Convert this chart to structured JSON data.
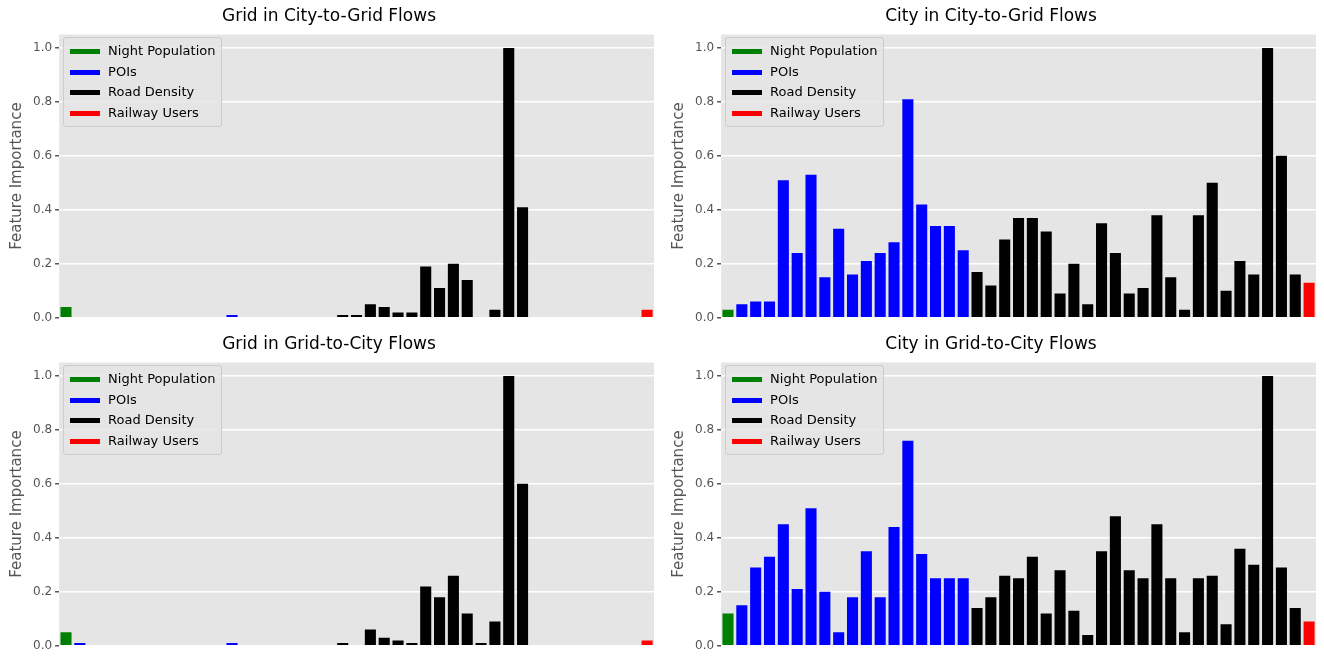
{
  "chart_data": [
    {
      "type": "bar",
      "title": "Grid in City-to-Grid Flows",
      "ylabel": "Feature Importance",
      "categories": [
        null,
        null,
        null,
        null,
        null,
        null,
        null,
        null,
        null,
        null,
        null,
        null,
        null,
        null,
        null,
        null,
        null,
        null,
        null,
        null,
        null,
        null,
        null,
        null,
        null,
        null,
        null,
        null,
        null,
        null,
        null,
        null,
        null,
        null,
        null,
        null,
        null,
        null,
        null,
        null,
        null,
        null,
        null
      ],
      "series": [
        {
          "name": "Night Population",
          "color": "#008000",
          "values": [
            0.04,
            null,
            null,
            null,
            null,
            null,
            null,
            null,
            null,
            null,
            null,
            null,
            null,
            null,
            null,
            null,
            null,
            null,
            null,
            null,
            null,
            null,
            null,
            null,
            null,
            null,
            null,
            null,
            null,
            null,
            null,
            null,
            null,
            null,
            null,
            null,
            null,
            null,
            null,
            null,
            null,
            null,
            null
          ]
        },
        {
          "name": "POIs",
          "color": "#0000ff",
          "values": [
            null,
            0,
            0,
            0,
            0,
            0,
            0,
            0,
            0,
            0,
            0,
            0,
            0.01,
            0,
            0,
            0,
            0,
            0,
            null,
            null,
            null,
            null,
            null,
            null,
            null,
            null,
            null,
            null,
            null,
            null,
            null,
            null,
            null,
            null,
            null,
            null,
            null,
            null,
            null,
            null,
            null,
            null,
            null
          ]
        },
        {
          "name": "Road Density",
          "color": "#000000",
          "values": [
            null,
            null,
            null,
            null,
            null,
            null,
            null,
            null,
            null,
            null,
            null,
            null,
            null,
            null,
            null,
            null,
            null,
            null,
            0,
            0,
            0.01,
            0.01,
            0.05,
            0.04,
            0.02,
            0.02,
            0.19,
            0.11,
            0.2,
            0.14,
            0,
            0.03,
            1.0,
            0.41,
            0,
            0,
            0,
            0,
            0,
            0,
            0,
            0,
            null
          ]
        },
        {
          "name": "Railway Users",
          "color": "#ff0000",
          "values": [
            null,
            null,
            null,
            null,
            null,
            null,
            null,
            null,
            null,
            null,
            null,
            null,
            null,
            null,
            null,
            null,
            null,
            null,
            null,
            null,
            null,
            null,
            null,
            null,
            null,
            null,
            null,
            null,
            null,
            null,
            null,
            null,
            null,
            null,
            null,
            null,
            null,
            null,
            null,
            null,
            null,
            null,
            0.03
          ]
        }
      ],
      "ylim": [
        0,
        1.05
      ],
      "yticks": [
        {
          "value": 0,
          "label": "0.0"
        },
        {
          "value": 0.2,
          "label": "0.2"
        },
        {
          "value": 0.4,
          "label": "0.4"
        },
        {
          "value": 0.6,
          "label": "0.6"
        },
        {
          "value": 0.8,
          "label": "0.8"
        },
        {
          "value": 1,
          "label": "1.0"
        }
      ],
      "grid": "y",
      "legend": "top left"
    },
    {
      "type": "bar",
      "title": "City in City-to-Grid Flows",
      "ylabel": "Feature Importance",
      "categories": [
        null,
        null,
        null,
        null,
        null,
        null,
        null,
        null,
        null,
        null,
        null,
        null,
        null,
        null,
        null,
        null,
        null,
        null,
        null,
        null,
        null,
        null,
        null,
        null,
        null,
        null,
        null,
        null,
        null,
        null,
        null,
        null,
        null,
        null,
        null,
        null,
        null,
        null,
        null,
        null,
        null,
        null,
        null
      ],
      "series": [
        {
          "name": "Night Population",
          "color": "#008000",
          "values": [
            0.03,
            null,
            null,
            null,
            null,
            null,
            null,
            null,
            null,
            null,
            null,
            null,
            null,
            null,
            null,
            null,
            null,
            null,
            null,
            null,
            null,
            null,
            null,
            null,
            null,
            null,
            null,
            null,
            null,
            null,
            null,
            null,
            null,
            null,
            null,
            null,
            null,
            null,
            null,
            null,
            null,
            null,
            null
          ]
        },
        {
          "name": "POIs",
          "color": "#0000ff",
          "values": [
            null,
            0.05,
            0.06,
            0.06,
            0.51,
            0.24,
            0.53,
            0.15,
            0.33,
            0.16,
            0.21,
            0.24,
            0.28,
            0.81,
            0.42,
            0.34,
            0.34,
            0.25,
            null,
            null,
            null,
            null,
            null,
            null,
            null,
            null,
            null,
            null,
            null,
            null,
            null,
            null,
            null,
            null,
            null,
            null,
            null,
            null,
            null,
            null,
            null,
            null,
            null
          ]
        },
        {
          "name": "Road Density",
          "color": "#000000",
          "values": [
            null,
            null,
            null,
            null,
            null,
            null,
            null,
            null,
            null,
            null,
            null,
            null,
            null,
            null,
            null,
            null,
            null,
            null,
            0.17,
            0.12,
            0.29,
            0.37,
            0.37,
            0.32,
            0.09,
            0.2,
            0.05,
            0.35,
            0.24,
            0.09,
            0.11,
            0.38,
            0.15,
            0.03,
            0.38,
            0.5,
            0.1,
            0.21,
            0.16,
            1.0,
            0.6,
            0.16,
            null
          ]
        },
        {
          "name": "Railway Users",
          "color": "#ff0000",
          "values": [
            null,
            null,
            null,
            null,
            null,
            null,
            null,
            null,
            null,
            null,
            null,
            null,
            null,
            null,
            null,
            null,
            null,
            null,
            null,
            null,
            null,
            null,
            null,
            null,
            null,
            null,
            null,
            null,
            null,
            null,
            null,
            null,
            null,
            null,
            null,
            null,
            null,
            null,
            null,
            null,
            null,
            null,
            0.13
          ]
        }
      ],
      "ylim": [
        0,
        1.05
      ],
      "yticks": [
        {
          "value": 0,
          "label": "0.0"
        },
        {
          "value": 0.2,
          "label": "0.2"
        },
        {
          "value": 0.4,
          "label": "0.4"
        },
        {
          "value": 0.6,
          "label": "0.6"
        },
        {
          "value": 0.8,
          "label": "0.8"
        },
        {
          "value": 1,
          "label": "1.0"
        }
      ],
      "grid": "y",
      "legend": "top left"
    },
    {
      "type": "bar",
      "title": "Grid in Grid-to-City Flows",
      "ylabel": "Feature Importance",
      "categories": [
        null,
        null,
        null,
        null,
        null,
        null,
        null,
        null,
        null,
        null,
        null,
        null,
        null,
        null,
        null,
        null,
        null,
        null,
        null,
        null,
        null,
        null,
        null,
        null,
        null,
        null,
        null,
        null,
        null,
        null,
        null,
        null,
        null,
        null,
        null,
        null,
        null,
        null,
        null,
        null,
        null,
        null,
        null
      ],
      "series": [
        {
          "name": "Night Population",
          "color": "#008000",
          "values": [
            0.05,
            null,
            null,
            null,
            null,
            null,
            null,
            null,
            null,
            null,
            null,
            null,
            null,
            null,
            null,
            null,
            null,
            null,
            null,
            null,
            null,
            null,
            null,
            null,
            null,
            null,
            null,
            null,
            null,
            null,
            null,
            null,
            null,
            null,
            null,
            null,
            null,
            null,
            null,
            null,
            null,
            null,
            null
          ]
        },
        {
          "name": "POIs",
          "color": "#0000ff",
          "values": [
            null,
            0.01,
            0,
            0,
            0,
            0,
            0,
            0,
            0,
            0,
            0,
            0,
            0.01,
            0,
            0,
            0,
            0,
            0,
            null,
            null,
            null,
            null,
            null,
            null,
            null,
            null,
            null,
            null,
            null,
            null,
            null,
            null,
            null,
            null,
            null,
            null,
            null,
            null,
            null,
            null,
            null,
            null,
            null
          ]
        },
        {
          "name": "Road Density",
          "color": "#000000",
          "values": [
            null,
            null,
            null,
            null,
            null,
            null,
            null,
            null,
            null,
            null,
            null,
            null,
            null,
            null,
            null,
            null,
            null,
            null,
            0,
            0,
            0.01,
            0,
            0.06,
            0.03,
            0.02,
            0.01,
            0.22,
            0.18,
            0.26,
            0.12,
            0.01,
            0.09,
            1.0,
            0.6,
            0,
            0,
            0,
            0,
            0,
            0,
            0,
            0,
            null
          ]
        },
        {
          "name": "Railway Users",
          "color": "#ff0000",
          "values": [
            null,
            null,
            null,
            null,
            null,
            null,
            null,
            null,
            null,
            null,
            null,
            null,
            null,
            null,
            null,
            null,
            null,
            null,
            null,
            null,
            null,
            null,
            null,
            null,
            null,
            null,
            null,
            null,
            null,
            null,
            null,
            null,
            null,
            null,
            null,
            null,
            null,
            null,
            null,
            null,
            null,
            null,
            0.02
          ]
        }
      ],
      "ylim": [
        0,
        1.05
      ],
      "yticks": [
        {
          "value": 0,
          "label": "0.0"
        },
        {
          "value": 0.2,
          "label": "0.2"
        },
        {
          "value": 0.4,
          "label": "0.4"
        },
        {
          "value": 0.6,
          "label": "0.6"
        },
        {
          "value": 0.8,
          "label": "0.8"
        },
        {
          "value": 1,
          "label": "1.0"
        }
      ],
      "grid": "y",
      "legend": "top left"
    },
    {
      "type": "bar",
      "title": "City in Grid-to-City Flows",
      "ylabel": "Feature Importance",
      "categories": [
        null,
        null,
        null,
        null,
        null,
        null,
        null,
        null,
        null,
        null,
        null,
        null,
        null,
        null,
        null,
        null,
        null,
        null,
        null,
        null,
        null,
        null,
        null,
        null,
        null,
        null,
        null,
        null,
        null,
        null,
        null,
        null,
        null,
        null,
        null,
        null,
        null,
        null,
        null,
        null,
        null,
        null,
        null
      ],
      "series": [
        {
          "name": "Night Population",
          "color": "#008000",
          "values": [
            0.12,
            null,
            null,
            null,
            null,
            null,
            null,
            null,
            null,
            null,
            null,
            null,
            null,
            null,
            null,
            null,
            null,
            null,
            null,
            null,
            null,
            null,
            null,
            null,
            null,
            null,
            null,
            null,
            null,
            null,
            null,
            null,
            null,
            null,
            null,
            null,
            null,
            null,
            null,
            null,
            null,
            null,
            null
          ]
        },
        {
          "name": "POIs",
          "color": "#0000ff",
          "values": [
            null,
            0.15,
            0.29,
            0.33,
            0.45,
            0.21,
            0.51,
            0.2,
            0.05,
            0.18,
            0.35,
            0.18,
            0.44,
            0.76,
            0.34,
            0.25,
            0.25,
            0.25,
            null,
            null,
            null,
            null,
            null,
            null,
            null,
            null,
            null,
            null,
            null,
            null,
            null,
            null,
            null,
            null,
            null,
            null,
            null,
            null,
            null,
            null,
            null,
            null,
            null
          ]
        },
        {
          "name": "Road Density",
          "color": "#000000",
          "values": [
            null,
            null,
            null,
            null,
            null,
            null,
            null,
            null,
            null,
            null,
            null,
            null,
            null,
            null,
            null,
            null,
            null,
            null,
            0.14,
            0.18,
            0.26,
            0.25,
            0.33,
            0.12,
            0.28,
            0.13,
            0.04,
            0.35,
            0.48,
            0.28,
            0.25,
            0.45,
            0.25,
            0.05,
            0.25,
            0.26,
            0.08,
            0.36,
            0.3,
            1.0,
            0.29,
            0.14,
            null
          ]
        },
        {
          "name": "Railway Users",
          "color": "#ff0000",
          "values": [
            null,
            null,
            null,
            null,
            null,
            null,
            null,
            null,
            null,
            null,
            null,
            null,
            null,
            null,
            null,
            null,
            null,
            null,
            null,
            null,
            null,
            null,
            null,
            null,
            null,
            null,
            null,
            null,
            null,
            null,
            null,
            null,
            null,
            null,
            null,
            null,
            null,
            null,
            null,
            null,
            null,
            null,
            0.09
          ]
        }
      ],
      "ylim": [
        0,
        1.05
      ],
      "yticks": [
        {
          "value": 0,
          "label": "0.0"
        },
        {
          "value": 0.2,
          "label": "0.2"
        },
        {
          "value": 0.4,
          "label": "0.4"
        },
        {
          "value": 0.6,
          "label": "0.6"
        },
        {
          "value": 0.8,
          "label": "0.8"
        },
        {
          "value": 1,
          "label": "1.0"
        }
      ],
      "grid": "y",
      "legend": "top left"
    }
  ]
}
